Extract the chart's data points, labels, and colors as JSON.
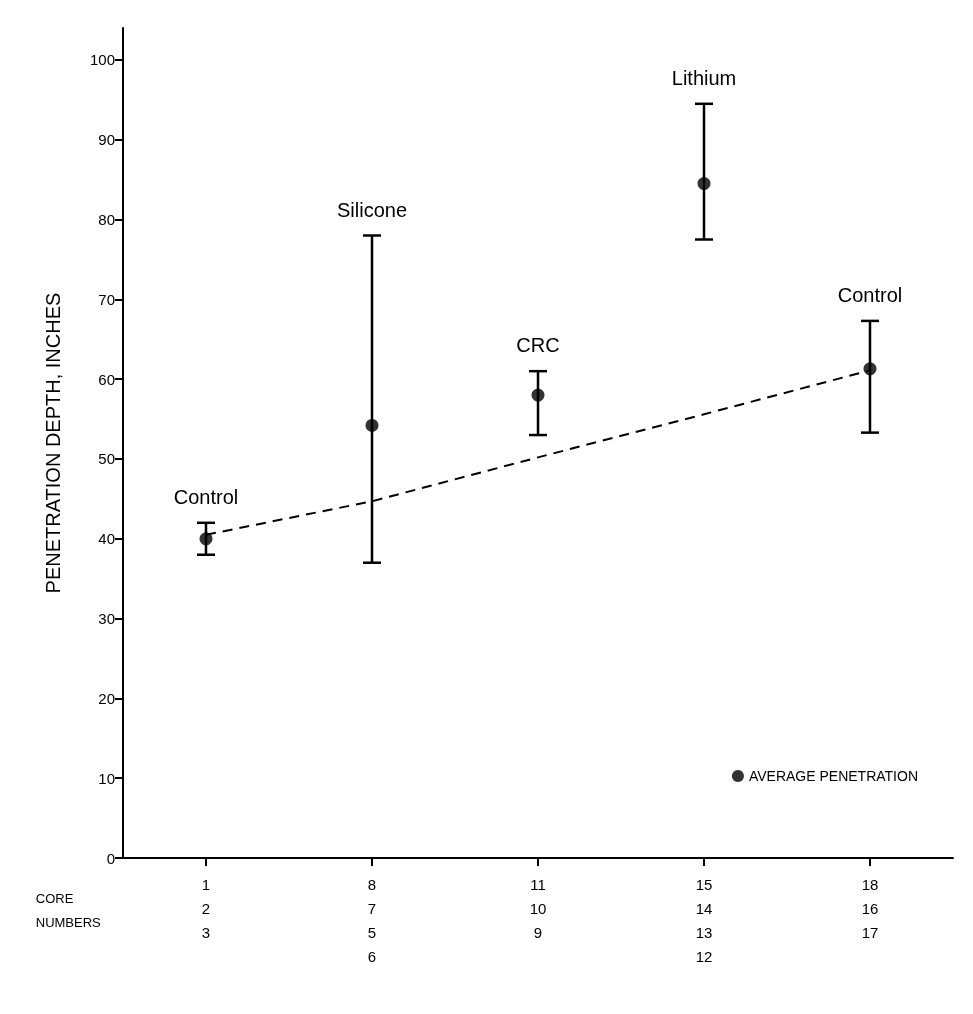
{
  "chart_data": {
    "type": "scatter",
    "ylabel": "PENETRATION DEPTH, INCHES",
    "xlabel": "CORE\nNUMBERS",
    "categories": [
      "1\n2\n3",
      "8\n7\n5\n6",
      "11\n10\n9",
      "15\n14\n13\n12",
      "18\n16\n17"
    ],
    "ylim": [
      0,
      104
    ],
    "yticks": [
      0,
      10,
      20,
      30,
      40,
      50,
      60,
      70,
      80,
      90,
      100
    ],
    "grid": false,
    "legend": "bottom right",
    "series": [
      {
        "name": "AVERAGE PENETRATION",
        "color": "#000000",
        "marker": "circle",
        "values": [
          40,
          54.2,
          58,
          84.5,
          61.3
        ],
        "errors": [
          [
            38,
            42
          ],
          [
            37,
            78
          ],
          [
            53,
            61
          ],
          [
            77.5,
            94.5
          ],
          [
            53.3,
            67.3
          ]
        ]
      },
      {
        "type": "line",
        "color": "#000000",
        "line_style": "dashed",
        "marker": "none",
        "values": [
          40.5,
          44.7,
          50.2,
          55.6,
          61.1
        ]
      }
    ],
    "annotations": [
      {
        "text": "Control",
        "x": "1\n2\n3",
        "y": 42
      },
      {
        "text": "Silicone",
        "x": "8\n7\n5\n6",
        "y": 78
      },
      {
        "text": "CRC",
        "x": "11\n10\n9",
        "y": 61
      },
      {
        "text": "Lithium",
        "x": "15\n14\n13\n12",
        "y": 94.5
      },
      {
        "text": "Control",
        "x": "18\n16\n17",
        "y": 67.3
      }
    ]
  }
}
